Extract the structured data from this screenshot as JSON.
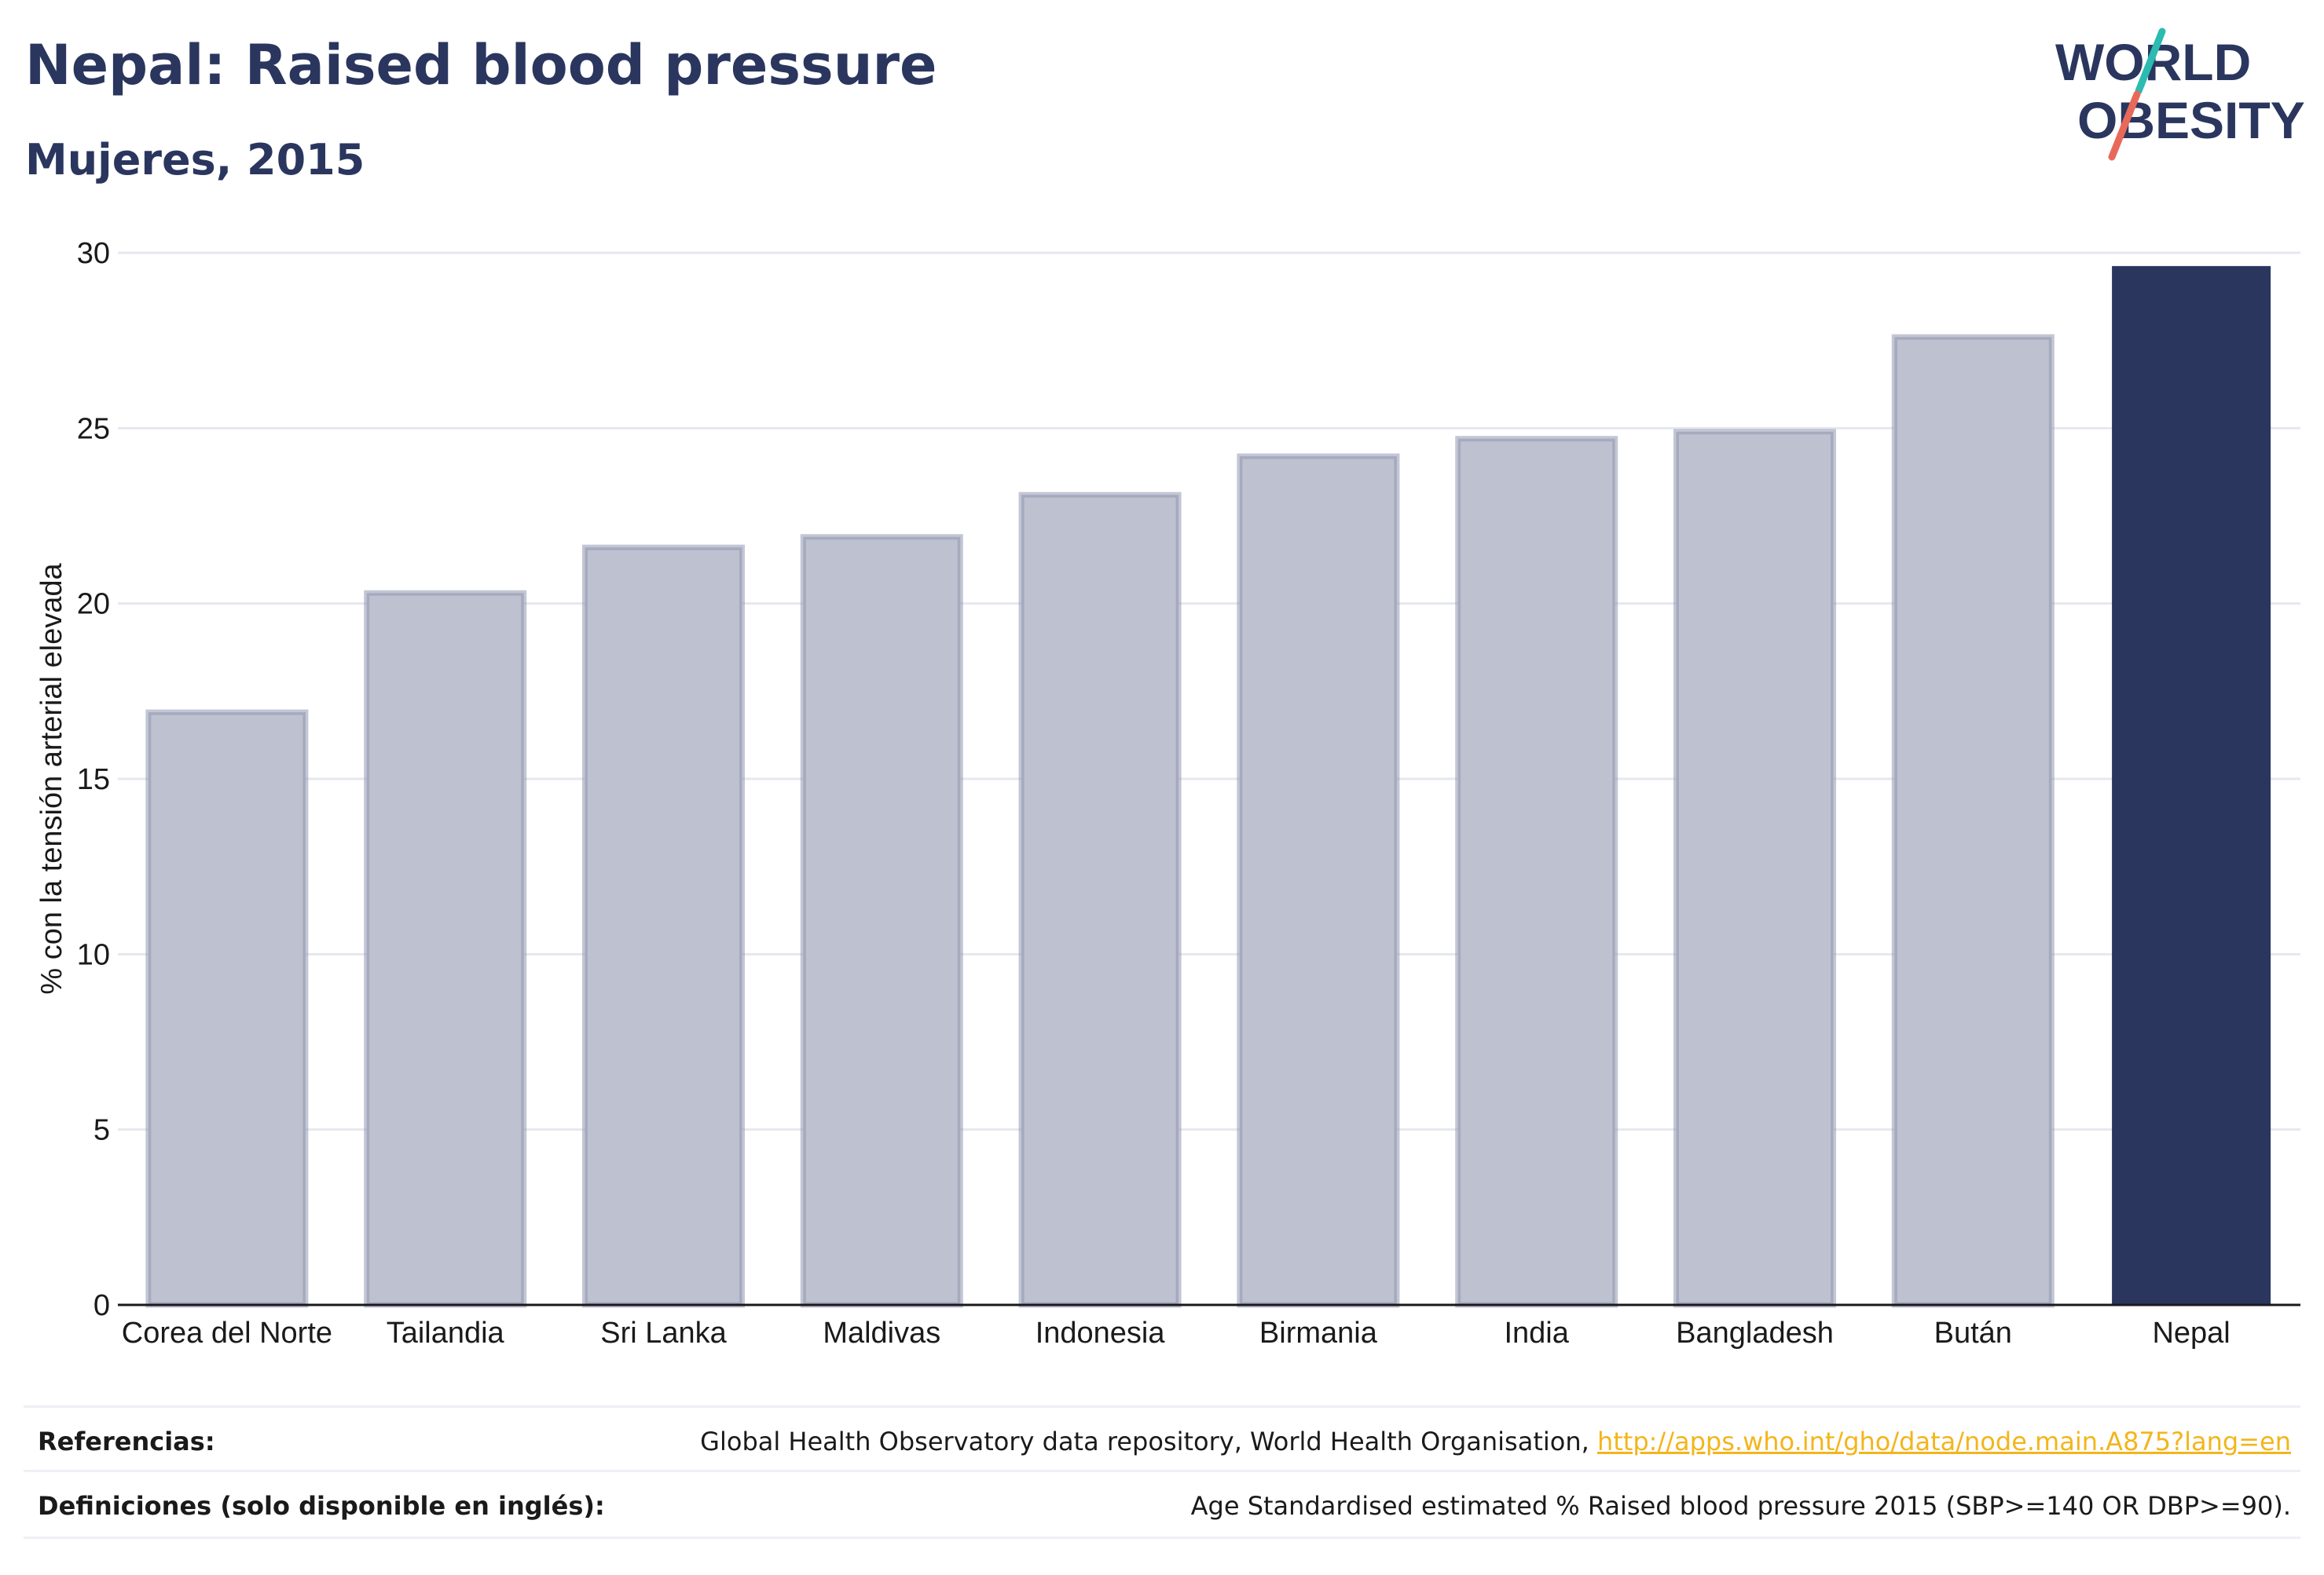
{
  "header": {
    "title": "Nepal: Raised blood pressure",
    "subtitle": "Mujeres, 2015"
  },
  "logo": {
    "line1": "WORLD",
    "line2": "OBESITY",
    "slash_colors": [
      "#2bbbb1",
      "#e8695a"
    ]
  },
  "colors": {
    "highlight": "#2a365e",
    "other_fill": "#bec1cf",
    "other_stroke": "#9297b0",
    "grid": "#e6e8ef",
    "axis": "#1a1a1a",
    "link": "#f3b51b"
  },
  "chart_data": {
    "type": "bar",
    "title": "Nepal: Raised blood pressure",
    "subtitle": "Mujeres, 2015",
    "xlabel": "",
    "ylabel": "% con la tensión arterial elevada",
    "categories": [
      "Corea del Norte",
      "Tailandia",
      "Sri Lanka",
      "Maldivas",
      "Indonesia",
      "Birmania",
      "India",
      "Bangladesh",
      "Bután",
      "Nepal"
    ],
    "values": [
      16.9,
      20.3,
      21.6,
      21.9,
      23.1,
      24.2,
      24.7,
      24.9,
      27.6,
      29.6
    ],
    "highlight": "Nepal",
    "ylim": [
      0,
      30
    ],
    "yticks": [
      0,
      5,
      10,
      15,
      20,
      25,
      30
    ],
    "grid": true
  },
  "footer": {
    "references_label": "Referencias:",
    "references_text": "Global Health Observatory data repository, World Health Organisation,",
    "references_link": "http://apps.who.int/gho/data/node.main.A875?lang=en",
    "definitions_label": "Definiciones (solo disponible en inglés):",
    "definitions_text": "Age Standardised estimated % Raised blood pressure 2015 (SBP>=140 OR DBP>=90)."
  }
}
